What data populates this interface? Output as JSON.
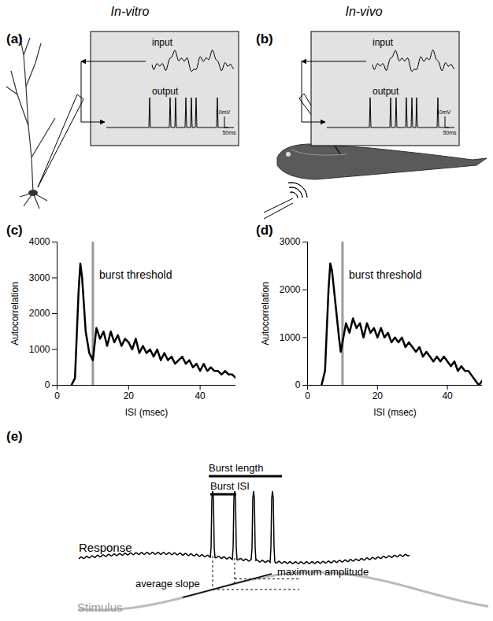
{
  "figure": {
    "panel_labels": [
      "(a)",
      "(b)",
      "(c)",
      "(d)",
      "(e)"
    ],
    "a": {
      "title": "In-vitro",
      "input": "input",
      "output": "output",
      "scale_bar": [
        "10mV",
        "50ms"
      ]
    },
    "b": {
      "title": "In-vivo",
      "input": "input",
      "output": "output",
      "scale_bar": [
        "10mV",
        "50ms"
      ]
    },
    "e": {
      "burst_length": "Burst length",
      "burst_isi": "Burst ISI",
      "response": "Response",
      "stimulus": "Stimulus",
      "average_slope": "average slope",
      "maximum_amplitude": "maximum amplitude"
    }
  },
  "chart_data": [
    {
      "type": "line",
      "x_label": "ISI (msec)",
      "y_label": "Autocorrelation",
      "color": "#000000",
      "x": [
        4,
        5,
        6,
        6.5,
        7,
        8,
        9,
        10,
        11,
        12,
        13,
        14,
        15,
        16,
        17,
        18,
        19,
        20,
        21,
        22,
        23,
        24,
        25,
        26,
        27,
        28,
        29,
        30,
        31,
        32,
        33,
        34,
        35,
        36,
        37,
        38,
        39,
        40,
        41,
        42,
        43,
        44,
        45,
        46,
        47,
        48,
        49,
        50
      ],
      "values": [
        0,
        200,
        2600,
        3400,
        3000,
        1500,
        900,
        700,
        1600,
        1300,
        1500,
        1100,
        1500,
        1200,
        1400,
        1100,
        1300,
        1200,
        1000,
        1300,
        900,
        1100,
        900,
        1000,
        800,
        1000,
        700,
        900,
        700,
        800,
        600,
        700,
        800,
        600,
        700,
        500,
        600,
        400,
        600,
        400,
        500,
        400,
        400,
        300,
        400,
        300,
        300,
        200
      ],
      "xlim": [
        0,
        50
      ],
      "ylim": [
        0,
        4000
      ],
      "xticks": [
        0,
        20,
        40
      ],
      "yticks": [
        0,
        1000,
        2000,
        3000,
        4000
      ],
      "annotations": [
        {
          "text": "burst threshold",
          "x": 10
        }
      ]
    },
    {
      "type": "line",
      "x_label": "ISI (msec)",
      "y_label": "Autocorrelation",
      "color": "#000000",
      "x": [
        4,
        5,
        6,
        6.5,
        7,
        8,
        9,
        9.5,
        10,
        11,
        12,
        13,
        14,
        15,
        16,
        17,
        18,
        19,
        20,
        21,
        22,
        23,
        24,
        25,
        26,
        27,
        28,
        29,
        30,
        31,
        32,
        33,
        34,
        35,
        36,
        37,
        38,
        39,
        40,
        41,
        42,
        43,
        44,
        45,
        46,
        47,
        48,
        49,
        50
      ],
      "values": [
        0,
        300,
        2000,
        2550,
        2400,
        1700,
        1000,
        700,
        900,
        1300,
        1100,
        1400,
        1200,
        1300,
        1000,
        1300,
        1100,
        1200,
        1000,
        1200,
        1000,
        1100,
        900,
        1000,
        900,
        1000,
        800,
        900,
        800,
        700,
        800,
        600,
        700,
        600,
        500,
        600,
        500,
        600,
        500,
        400,
        500,
        300,
        400,
        300,
        300,
        200,
        100,
        0,
        100
      ],
      "xlim": [
        0,
        50
      ],
      "ylim": [
        0,
        3000
      ],
      "xticks": [
        0,
        20,
        40
      ],
      "yticks": [
        0,
        1000,
        2000,
        3000
      ],
      "annotations": [
        {
          "text": "burst threshold",
          "x": 10
        }
      ]
    }
  ]
}
